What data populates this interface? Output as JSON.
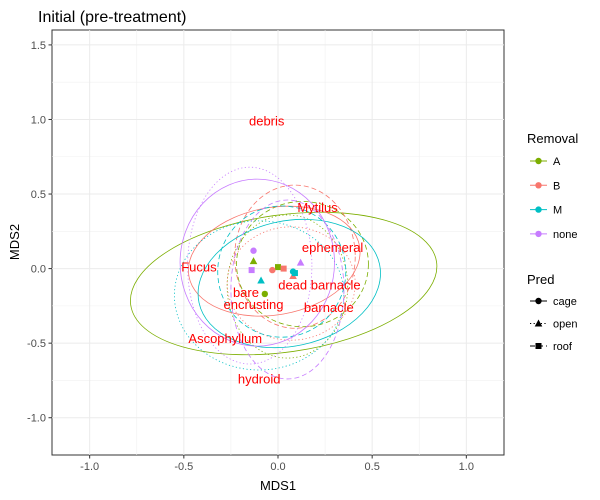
{
  "chart_data": {
    "type": "scatter",
    "title": "Initial (pre-treatment)",
    "xlabel": "MDS1",
    "ylabel": "MDS2",
    "xlim": [
      -1.2,
      1.2
    ],
    "ylim": [
      -1.25,
      1.6
    ],
    "x_ticks": [
      -1.0,
      -0.5,
      0.0,
      0.5,
      1.0
    ],
    "x_tick_labels": [
      "-1.0",
      "-0.5",
      "0.0",
      "0.5",
      "1.0"
    ],
    "y_ticks": [
      -1.0,
      -0.5,
      0.0,
      0.5,
      1.0,
      1.5
    ],
    "y_tick_labels": [
      "-1.0",
      "-0.5",
      "0.0",
      "0.5",
      "1.0",
      "1.5"
    ],
    "grid": true,
    "legend": {
      "placement": "right",
      "removal_title": "Removal",
      "removal": [
        {
          "label": "A",
          "color": "#7CAE00"
        },
        {
          "label": "B",
          "color": "#F8766D"
        },
        {
          "label": "M",
          "color": "#00BFC4"
        },
        {
          "label": "none",
          "color": "#C77CFF"
        }
      ],
      "pred_title": "Pred",
      "pred": [
        {
          "label": "cage",
          "shape": "circle",
          "linetype": "solid"
        },
        {
          "label": "open",
          "shape": "triangle",
          "linetype": "dotted"
        },
        {
          "label": "roof",
          "shape": "square",
          "linetype": "dashed"
        }
      ]
    },
    "centroids": [
      {
        "removal": "A",
        "pred": "cage",
        "x": -0.07,
        "y": -0.17,
        "color": "#7CAE00"
      },
      {
        "removal": "A",
        "pred": "open",
        "x": -0.13,
        "y": 0.05,
        "color": "#7CAE00"
      },
      {
        "removal": "A",
        "pred": "roof",
        "x": 0.0,
        "y": 0.01,
        "color": "#7CAE00"
      },
      {
        "removal": "B",
        "pred": "cage",
        "x": -0.03,
        "y": -0.01,
        "color": "#F8766D"
      },
      {
        "removal": "B",
        "pred": "open",
        "x": 0.08,
        "y": -0.05,
        "color": "#F8766D"
      },
      {
        "removal": "B",
        "pred": "roof",
        "x": 0.03,
        "y": 0.0,
        "color": "#F8766D"
      },
      {
        "removal": "M",
        "pred": "cage",
        "x": 0.08,
        "y": -0.02,
        "color": "#00BFC4"
      },
      {
        "removal": "M",
        "pred": "open",
        "x": -0.09,
        "y": -0.08,
        "color": "#00BFC4"
      },
      {
        "removal": "M",
        "pred": "roof",
        "x": 0.09,
        "y": -0.03,
        "color": "#00BFC4"
      },
      {
        "removal": "none",
        "pred": "cage",
        "x": -0.13,
        "y": 0.12,
        "color": "#C77CFF"
      },
      {
        "removal": "none",
        "pred": "open",
        "x": 0.12,
        "y": 0.04,
        "color": "#C77CFF"
      },
      {
        "removal": "none",
        "pred": "roof",
        "x": -0.14,
        "y": -0.01,
        "color": "#C77CFF"
      }
    ],
    "ellipses": [
      {
        "removal": "A",
        "pred": "cage",
        "cx": 0.03,
        "cy": -0.1,
        "rx": 0.82,
        "ry": 0.46,
        "angle": 8,
        "color": "#7CAE00",
        "linetype": "solid"
      },
      {
        "removal": "A",
        "pred": "open",
        "cx": 0.05,
        "cy": -0.12,
        "rx": 0.32,
        "ry": 0.48,
        "angle": 0,
        "color": "#7CAE00",
        "linetype": "dotted"
      },
      {
        "removal": "A",
        "pred": "roof",
        "cx": 0.13,
        "cy": 0.03,
        "rx": 0.35,
        "ry": 0.42,
        "angle": 0,
        "color": "#7CAE00",
        "linetype": "dashed"
      },
      {
        "removal": "B",
        "pred": "cage",
        "cx": -0.02,
        "cy": 0.05,
        "rx": 0.46,
        "ry": 0.36,
        "angle": 10,
        "color": "#F8766D",
        "linetype": "solid"
      },
      {
        "removal": "B",
        "pred": "open",
        "cx": 0.07,
        "cy": -0.1,
        "rx": 0.34,
        "ry": 0.38,
        "angle": 0,
        "color": "#F8766D",
        "linetype": "dotted"
      },
      {
        "removal": "B",
        "pred": "roof",
        "cx": 0.09,
        "cy": 0.08,
        "rx": 0.32,
        "ry": 0.48,
        "angle": 0,
        "color": "#F8766D",
        "linetype": "dashed"
      },
      {
        "removal": "M",
        "pred": "cage",
        "cx": 0.06,
        "cy": -0.1,
        "rx": 0.49,
        "ry": 0.42,
        "angle": 12,
        "color": "#00BFC4",
        "linetype": "solid"
      },
      {
        "removal": "M",
        "pred": "open",
        "cx": -0.1,
        "cy": -0.18,
        "rx": 0.45,
        "ry": 0.5,
        "angle": 0,
        "color": "#00BFC4",
        "linetype": "dotted"
      },
      {
        "removal": "M",
        "pred": "roof",
        "cx": 0.02,
        "cy": -0.02,
        "rx": 0.34,
        "ry": 0.44,
        "angle": 0,
        "color": "#00BFC4",
        "linetype": "dashed"
      },
      {
        "removal": "none",
        "pred": "cage",
        "cx": -0.11,
        "cy": 0.04,
        "rx": 0.41,
        "ry": 0.56,
        "angle": 0,
        "color": "#C77CFF",
        "linetype": "solid"
      },
      {
        "removal": "none",
        "pred": "open",
        "cx": -0.15,
        "cy": 0.02,
        "rx": 0.33,
        "ry": 0.66,
        "angle": 0,
        "color": "#C77CFF",
        "linetype": "dotted"
      },
      {
        "removal": "none",
        "pred": "roof",
        "cx": 0.05,
        "cy": -0.14,
        "rx": 0.3,
        "ry": 0.6,
        "angle": 0,
        "color": "#C77CFF",
        "linetype": "dashed"
      }
    ],
    "species_labels": [
      {
        "text": "debris",
        "x": -0.06,
        "y": 0.99
      },
      {
        "text": "Mytilus",
        "x": 0.21,
        "y": 0.41
      },
      {
        "text": "ephemeral",
        "x": 0.29,
        "y": 0.14
      },
      {
        "text": "Fucus",
        "x": -0.42,
        "y": 0.01
      },
      {
        "text": "dead barnacle",
        "x": 0.22,
        "y": -0.11
      },
      {
        "text": "bare",
        "x": -0.17,
        "y": -0.16
      },
      {
        "text": "encrusting",
        "x": -0.13,
        "y": -0.24
      },
      {
        "text": "barnacle",
        "x": 0.27,
        "y": -0.26
      },
      {
        "text": "Ascophyllum",
        "x": -0.28,
        "y": -0.47
      },
      {
        "text": "hydroid",
        "x": -0.1,
        "y": -0.74
      }
    ]
  }
}
